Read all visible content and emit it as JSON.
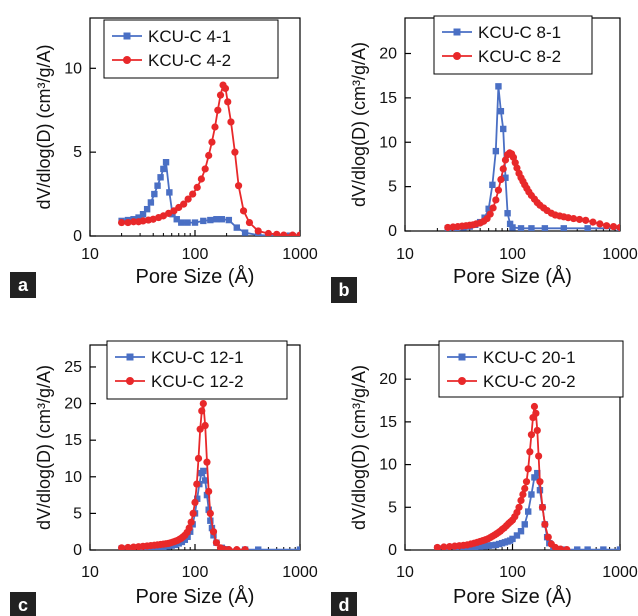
{
  "colors": {
    "series1": "#4a6fc4",
    "series2": "#e8282a",
    "panel_letter_bg": "#222222"
  },
  "chart_data": [
    {
      "panel": "a",
      "type": "line",
      "xlabel": "Pore Size (Å)",
      "ylabel": "dV/dlog(D) (cm³/g/A)",
      "xscale": "log",
      "xlim": [
        10,
        1000
      ],
      "ylim": [
        0,
        13
      ],
      "xticks": [
        10,
        100,
        1000
      ],
      "xtick_labels": [
        "10",
        "100",
        "1000"
      ],
      "yticks": [
        0,
        5,
        10
      ],
      "ytick_labels": [
        "0",
        "5",
        "10"
      ],
      "legend_position": "top",
      "series": [
        {
          "name": "KCU-C 4-1",
          "marker": "square",
          "x": [
            20,
            23,
            26,
            29,
            32,
            35,
            38,
            41,
            44,
            47,
            50,
            53,
            57,
            61,
            67,
            74,
            85,
            100,
            120,
            140,
            160,
            180,
            210,
            250,
            300,
            400,
            600,
            800,
            1000
          ],
          "y": [
            0.9,
            0.95,
            1.0,
            1.1,
            1.3,
            1.6,
            2.0,
            2.5,
            3.0,
            3.5,
            4.0,
            4.4,
            2.6,
            1.3,
            1.0,
            0.8,
            0.8,
            0.8,
            0.9,
            0.95,
            1.0,
            1.0,
            0.95,
            0.5,
            0.2,
            0.05,
            0.02,
            0.02,
            0.02
          ]
        },
        {
          "name": "KCU-C 4-2",
          "marker": "circle",
          "x": [
            20,
            23,
            26,
            29,
            32,
            36,
            40,
            45,
            50,
            56,
            63,
            70,
            78,
            86,
            95,
            105,
            115,
            125,
            135,
            145,
            155,
            165,
            175,
            185,
            195,
            205,
            220,
            240,
            260,
            290,
            330,
            400,
            500,
            600,
            700,
            850,
            1000
          ],
          "y": [
            0.8,
            0.8,
            0.85,
            0.85,
            0.9,
            0.95,
            1.0,
            1.1,
            1.2,
            1.35,
            1.5,
            1.7,
            1.9,
            2.2,
            2.5,
            2.9,
            3.4,
            4.0,
            4.8,
            5.6,
            6.5,
            7.5,
            8.4,
            9.0,
            8.8,
            8.0,
            6.8,
            5.0,
            3.0,
            1.5,
            0.8,
            0.3,
            0.15,
            0.1,
            0.05,
            0.05,
            0.05
          ]
        }
      ]
    },
    {
      "panel": "b",
      "type": "line",
      "xlabel": "Pore Size (Å)",
      "ylabel": "dV/dlog(D) (cm³/g/A)",
      "xscale": "log",
      "xlim": [
        10,
        1000
      ],
      "ylim": [
        0,
        24
      ],
      "xticks": [
        10,
        100,
        1000
      ],
      "xtick_labels": [
        "10",
        "100",
        "1000"
      ],
      "yticks": [
        0,
        5,
        10,
        15,
        20
      ],
      "ytick_labels": [
        "0",
        "5",
        "10",
        "15",
        "20"
      ],
      "legend_position": "top",
      "series": [
        {
          "name": "KCU-C 8-1",
          "marker": "square",
          "x": [
            25,
            30,
            35,
            40,
            45,
            50,
            55,
            60,
            65,
            70,
            74,
            78,
            82,
            86,
            90,
            95,
            100,
            120,
            150,
            200,
            300,
            500,
            1000
          ],
          "y": [
            0.3,
            0.35,
            0.4,
            0.5,
            0.7,
            1.0,
            1.5,
            2.5,
            5.2,
            9.0,
            16.3,
            13.5,
            11.5,
            6.0,
            2.0,
            0.8,
            0.4,
            0.3,
            0.3,
            0.3,
            0.3,
            0.3,
            0.3
          ]
        },
        {
          "name": "KCU-C 8-2",
          "marker": "circle",
          "x": [
            25,
            28,
            31,
            34,
            37,
            40,
            43,
            46,
            50,
            54,
            58,
            62,
            66,
            70,
            74,
            78,
            82,
            86,
            90,
            94,
            98,
            102,
            106,
            110,
            115,
            120,
            125,
            130,
            136,
            142,
            150,
            160,
            170,
            180,
            195,
            210,
            230,
            250,
            275,
            300,
            330,
            370,
            420,
            480,
            560,
            650,
            750,
            870,
            1000
          ],
          "y": [
            0.4,
            0.45,
            0.5,
            0.55,
            0.6,
            0.65,
            0.7,
            0.8,
            0.9,
            1.1,
            1.4,
            1.9,
            2.6,
            3.5,
            4.6,
            5.8,
            7.0,
            8.0,
            8.6,
            8.8,
            8.7,
            8.3,
            7.7,
            7.1,
            6.5,
            6.0,
            5.6,
            5.2,
            4.8,
            4.4,
            4.0,
            3.6,
            3.2,
            2.9,
            2.6,
            2.3,
            2.0,
            1.8,
            1.7,
            1.6,
            1.5,
            1.4,
            1.3,
            1.2,
            1.0,
            0.8,
            0.6,
            0.5,
            0.4
          ]
        }
      ]
    },
    {
      "panel": "c",
      "type": "line",
      "xlabel": "Pore Size (Å)",
      "ylabel": "dV/dlog(D) (cm³/g/A)",
      "xscale": "log",
      "xlim": [
        10,
        1000
      ],
      "ylim": [
        0,
        28
      ],
      "xticks": [
        10,
        100,
        1000
      ],
      "xtick_labels": [
        "10",
        "100",
        "1000"
      ],
      "yticks": [
        0,
        5,
        10,
        15,
        20,
        25
      ],
      "ytick_labels": [
        "0",
        "5",
        "10",
        "15",
        "20",
        "25"
      ],
      "legend_position": "top",
      "series": [
        {
          "name": "KCU-C 12-1",
          "marker": "square",
          "x": [
            20,
            25,
            30,
            35,
            40,
            45,
            50,
            55,
            60,
            65,
            70,
            75,
            80,
            85,
            90,
            95,
            100,
            105,
            110,
            115,
            120,
            125,
            130,
            135,
            140,
            145,
            150,
            160,
            180,
            200,
            300,
            400,
            1000
          ],
          "y": [
            0.2,
            0.2,
            0.2,
            0.2,
            0.3,
            0.3,
            0.4,
            0.5,
            0.6,
            0.7,
            0.9,
            1.1,
            1.4,
            1.8,
            2.5,
            3.5,
            5.0,
            7.0,
            9.0,
            10.5,
            10.8,
            9.5,
            7.5,
            5.5,
            4.0,
            3.0,
            2.0,
            1.0,
            0.3,
            0.1,
            0.05,
            0.05,
            0.05
          ]
        },
        {
          "name": "KCU-C 12-2",
          "marker": "circle",
          "x": [
            20,
            23,
            26,
            29,
            32,
            35,
            38,
            41,
            44,
            47,
            50,
            53,
            56,
            59,
            62,
            65,
            68,
            71,
            74,
            77,
            80,
            84,
            88,
            92,
            96,
            100,
            104,
            108,
            112,
            116,
            120,
            125,
            130,
            135,
            140,
            150,
            160,
            175,
            190,
            210,
            250,
            300
          ],
          "y": [
            0.3,
            0.35,
            0.4,
            0.45,
            0.5,
            0.55,
            0.6,
            0.65,
            0.7,
            0.75,
            0.8,
            0.85,
            0.9,
            1.0,
            1.1,
            1.2,
            1.3,
            1.45,
            1.6,
            1.8,
            2.0,
            2.4,
            3.0,
            3.8,
            5.0,
            6.5,
            9.0,
            12.5,
            16.5,
            19.0,
            20.0,
            17.0,
            12.0,
            8.0,
            5.0,
            2.5,
            1.0,
            0.3,
            0.1,
            0.05,
            0.05,
            0.05
          ]
        }
      ]
    },
    {
      "panel": "d",
      "type": "line",
      "xlabel": "Pore Size (Å)",
      "ylabel": "dV/dlog(D) (cm³/g/A)",
      "xscale": "log",
      "xlim": [
        10,
        1000
      ],
      "ylim": [
        0,
        24
      ],
      "xticks": [
        10,
        100,
        1000
      ],
      "xtick_labels": [
        "10",
        "100",
        "1000"
      ],
      "yticks": [
        0,
        5,
        10,
        15,
        20
      ],
      "ytick_labels": [
        "0",
        "5",
        "10",
        "15",
        "20"
      ],
      "legend_position": "top",
      "series": [
        {
          "name": "KCU-C 20-1",
          "marker": "square",
          "x": [
            20,
            25,
            30,
            35,
            40,
            45,
            50,
            55,
            60,
            65,
            70,
            75,
            80,
            85,
            90,
            95,
            100,
            110,
            120,
            130,
            140,
            150,
            160,
            170,
            180,
            190,
            200,
            210,
            220,
            240,
            270,
            300,
            400,
            500,
            700,
            1000
          ],
          "y": [
            0.2,
            0.2,
            0.2,
            0.25,
            0.3,
            0.35,
            0.4,
            0.45,
            0.5,
            0.55,
            0.6,
            0.7,
            0.8,
            0.9,
            1.0,
            1.1,
            1.3,
            1.7,
            2.2,
            3.0,
            4.5,
            6.5,
            8.5,
            9.0,
            7.0,
            5.0,
            3.0,
            1.5,
            0.8,
            0.3,
            0.1,
            0.05,
            0.05,
            0.05,
            0.05,
            0.05
          ]
        },
        {
          "name": "KCU-C 20-2",
          "marker": "circle",
          "x": [
            20,
            23,
            26,
            29,
            32,
            35,
            38,
            41,
            44,
            47,
            50,
            53,
            56,
            59,
            62,
            65,
            68,
            71,
            74,
            77,
            80,
            84,
            88,
            92,
            96,
            100,
            105,
            110,
            115,
            120,
            125,
            130,
            135,
            140,
            145,
            150,
            155,
            160,
            165,
            170,
            175,
            180,
            190,
            200,
            215,
            230,
            250,
            280,
            320
          ],
          "y": [
            0.3,
            0.35,
            0.4,
            0.45,
            0.5,
            0.55,
            0.6,
            0.7,
            0.8,
            0.9,
            1.0,
            1.1,
            1.2,
            1.3,
            1.45,
            1.6,
            1.75,
            1.9,
            2.05,
            2.2,
            2.4,
            2.6,
            2.85,
            3.1,
            3.3,
            3.5,
            3.9,
            4.4,
            5.0,
            5.8,
            6.5,
            7.2,
            8.0,
            9.5,
            11.5,
            13.5,
            15.5,
            16.8,
            16.0,
            14.0,
            11.0,
            8.0,
            5.0,
            3.0,
            1.5,
            0.7,
            0.3,
            0.1,
            0.05
          ]
        }
      ]
    }
  ]
}
